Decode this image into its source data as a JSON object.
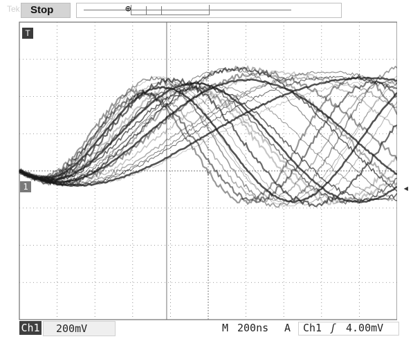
{
  "header": {
    "brand": "Tek",
    "status": "Stop",
    "record_cursor_icon": "trigger-position-icon"
  },
  "screen": {
    "trigger_icon": "T",
    "channel_marker": "1",
    "trigger_level_icon": "arrow-left-icon"
  },
  "footer": {
    "channel": "Ch1",
    "volts_per_div": "200mV",
    "time_label": "M",
    "time_per_div": "200ns",
    "trigger_mode": "A",
    "trigger_source": "Ch1",
    "trigger_slope": "ʃ",
    "trigger_level": "4.00mV"
  },
  "colors": {
    "trace": "#1a1a1a",
    "grid": "#7a7a7a",
    "background": "#ffffff"
  }
}
